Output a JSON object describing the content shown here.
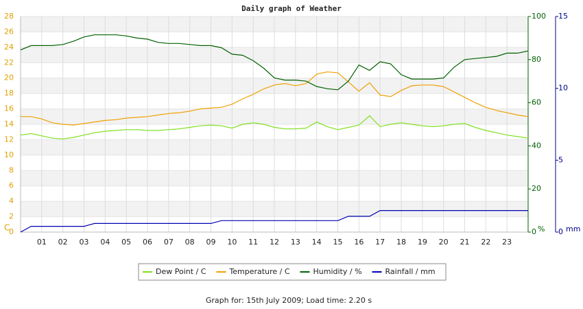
{
  "chart_data": {
    "type": "line",
    "title": "Daily graph of Weather",
    "footer": "Graph for: 15th July 2009; Load time: 2.20 s",
    "y_label": "C",
    "y2_label": "%",
    "y3_label": "mm",
    "x": [
      0,
      0.5,
      1,
      1.5,
      2,
      2.5,
      3,
      3.5,
      4,
      4.5,
      5,
      5.5,
      6,
      6.5,
      7,
      7.5,
      8,
      8.5,
      9,
      9.5,
      10,
      10.5,
      11,
      11.5,
      12,
      12.5,
      13,
      13.5,
      14,
      14.5,
      15,
      15.5,
      16,
      16.5,
      17,
      17.5,
      18,
      18.5,
      19,
      19.5,
      20,
      20.5,
      21,
      21.5,
      22,
      22.5,
      23,
      23.5,
      24
    ],
    "xlim": [
      0,
      24
    ],
    "xticks": [
      {
        "value": 1,
        "label": "01"
      },
      {
        "value": 2,
        "label": "02"
      },
      {
        "value": 3,
        "label": "03"
      },
      {
        "value": 4,
        "label": "04"
      },
      {
        "value": 5,
        "label": "05"
      },
      {
        "value": 6,
        "label": "06"
      },
      {
        "value": 7,
        "label": "07"
      },
      {
        "value": 8,
        "label": "08"
      },
      {
        "value": 9,
        "label": "09"
      },
      10,
      11,
      12,
      13,
      14,
      15,
      16,
      17,
      18,
      19,
      20,
      21,
      22,
      23
    ],
    "ylim": [
      0,
      28
    ],
    "yticks": [
      0,
      2,
      4,
      6,
      8,
      10,
      12,
      14,
      16,
      18,
      20,
      22,
      24,
      26,
      28
    ],
    "y2lim": [
      0,
      100
    ],
    "y2ticks": [
      0,
      20,
      40,
      60,
      80,
      100
    ],
    "y3lim": [
      0,
      15
    ],
    "y3ticks": [
      0,
      5,
      10,
      15
    ],
    "grid": true,
    "series": [
      {
        "name": "Dew Point / C",
        "color": "#7fe01f",
        "axis": "y",
        "values": [
          12.6,
          12.8,
          12.5,
          12.2,
          12.1,
          12.3,
          12.6,
          12.9,
          13.1,
          13.2,
          13.3,
          13.3,
          13.2,
          13.2,
          13.3,
          13.4,
          13.6,
          13.8,
          13.9,
          13.8,
          13.5,
          14.0,
          14.2,
          14.0,
          13.6,
          13.4,
          13.4,
          13.5,
          14.3,
          13.7,
          13.3,
          13.6,
          13.9,
          15.1,
          13.7,
          14.0,
          14.2,
          14.0,
          13.8,
          13.7,
          13.8,
          14.0,
          14.1,
          13.6,
          13.2,
          12.9,
          12.6,
          12.4,
          12.2
        ]
      },
      {
        "name": "Temperature / C",
        "color": "#f0a000",
        "axis": "y",
        "values": [
          15.0,
          15.0,
          14.7,
          14.2,
          14.0,
          13.9,
          14.1,
          14.3,
          14.5,
          14.6,
          14.8,
          14.9,
          15.0,
          15.2,
          15.4,
          15.5,
          15.7,
          16.0,
          16.1,
          16.2,
          16.6,
          17.3,
          17.9,
          18.6,
          19.1,
          19.3,
          19.0,
          19.3,
          20.5,
          20.8,
          20.7,
          19.5,
          18.3,
          19.4,
          17.8,
          17.6,
          18.4,
          19.0,
          19.1,
          19.1,
          18.9,
          18.2,
          17.5,
          16.8,
          16.2,
          15.8,
          15.5,
          15.2,
          15.0
        ]
      },
      {
        "name": "Humidity / %",
        "color": "#006000",
        "axis": "y2",
        "values": [
          84.5,
          86.5,
          86.5,
          86.5,
          87,
          88.5,
          90.5,
          91.5,
          91.5,
          91.5,
          91,
          90,
          89.5,
          88,
          87.5,
          87.5,
          87,
          86.5,
          86.5,
          85.5,
          82.5,
          82,
          79.5,
          76,
          71.5,
          70.5,
          70.5,
          70,
          67.5,
          66.5,
          66,
          70,
          77.5,
          75,
          79,
          78,
          73,
          71,
          71,
          71,
          71.5,
          76.5,
          80,
          80.5,
          81,
          81.5,
          83,
          83,
          84
        ]
      },
      {
        "name": "Rainfall / mm",
        "color": "#0000b0",
        "axis": "y3",
        "values": [
          0,
          0.4,
          0.4,
          0.4,
          0.4,
          0.4,
          0.4,
          0.6,
          0.6,
          0.6,
          0.6,
          0.6,
          0.6,
          0.6,
          0.6,
          0.6,
          0.6,
          0.6,
          0.6,
          0.8,
          0.8,
          0.8,
          0.8,
          0.8,
          0.8,
          0.8,
          0.8,
          0.8,
          0.8,
          0.8,
          0.8,
          1.1,
          1.1,
          1.1,
          1.5,
          1.5,
          1.5,
          1.5,
          1.5,
          1.5,
          1.5,
          1.5,
          1.5,
          1.5,
          1.5,
          1.5,
          1.5,
          1.5,
          1.5
        ]
      }
    ]
  }
}
